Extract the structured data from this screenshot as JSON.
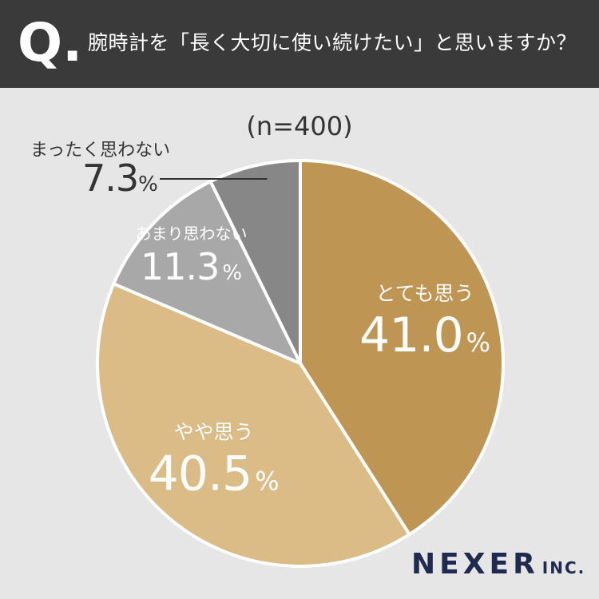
{
  "header": {
    "q_mark": "Q.",
    "question": "腕時計を「長く大切に使い続けたい」と思いますか？"
  },
  "sample_size": "(n=400)",
  "chart_data": {
    "type": "pie",
    "title": "腕時計を「長く大切に使い続けたい」と思いますか？",
    "subtitle": "(n=400)",
    "unit": "%",
    "slices": [
      {
        "label": "とても思う",
        "value": 41.0,
        "display": "41.0",
        "color": "#bf9554"
      },
      {
        "label": "やや思う",
        "value": 40.5,
        "display": "40.5",
        "color": "#dbbb86"
      },
      {
        "label": "あまり思わない",
        "value": 11.3,
        "display": "11.3",
        "color": "#a8a8a8"
      },
      {
        "label": "まったく思わない",
        "value": 7.3,
        "display": "7.3",
        "color": "#878787"
      }
    ]
  },
  "brand": {
    "name": "NEXER",
    "suffix": "INC."
  }
}
